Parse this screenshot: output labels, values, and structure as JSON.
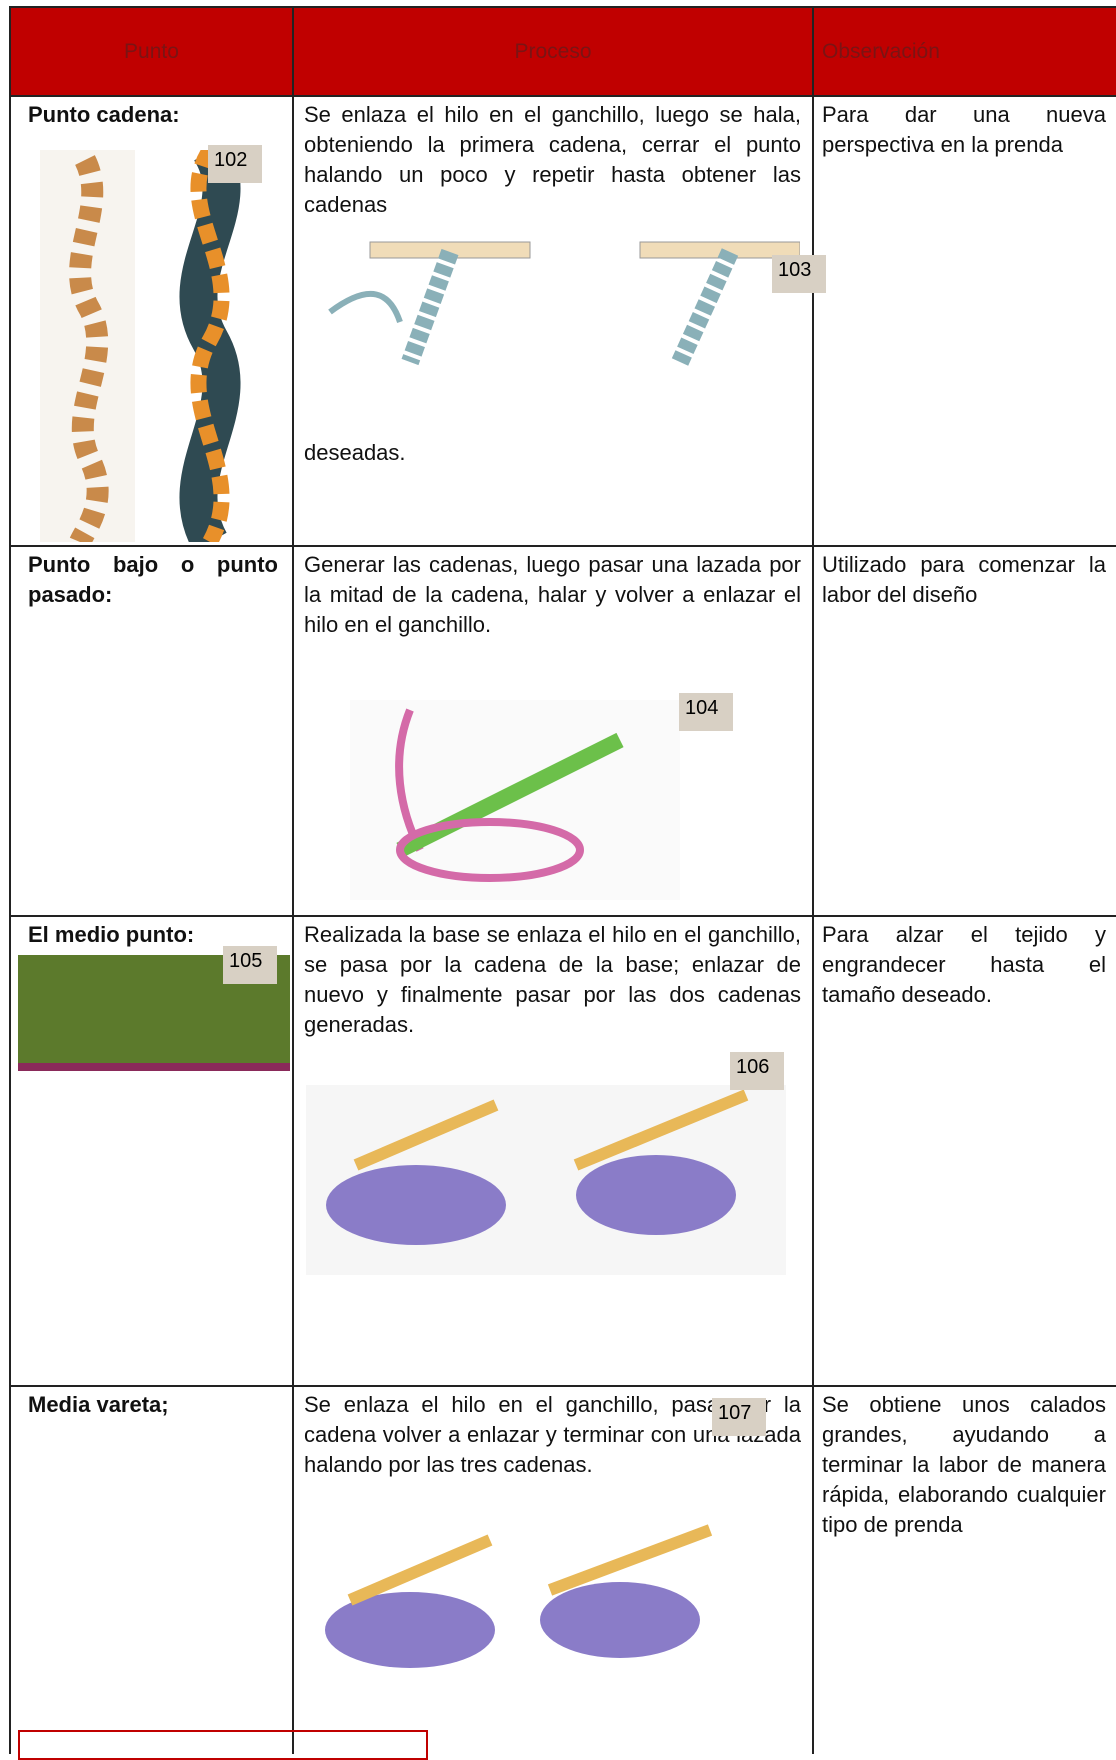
{
  "table": {
    "header": [
      "Punto",
      "Proceso",
      "Observación"
    ],
    "rows": [
      {
        "punto": "Punto cadena:",
        "proceso": "Se enlaza el hilo en el ganchillo, luego se hala, obteniendo la primera cadena, cerrar el punto halando un poco y repetir hasta obtener las cadenas",
        "proceso_end": "deseadas.",
        "observacion": "Para dar una nueva perspectiva en la prenda",
        "labels": [
          "102",
          "103"
        ]
      },
      {
        "punto": "Punto bajo o punto pasado:",
        "proceso": "Generar las cadenas, luego pasar una lazada por la mitad de la cadena, halar y volver a enlazar el hilo en el ganchillo.",
        "observacion": "Utilizado para comenzar la labor del diseño",
        "labels": [
          "104"
        ]
      },
      {
        "punto": "El medio punto:",
        "proceso": "Realizada la base se enlaza el hilo en el ganchillo, se pasa por la cadena de la base; enlazar de nuevo y finalmente pasar por las dos cadenas generadas.",
        "observacion": "Para alzar el tejido y engrandecer hasta el tamaño deseado.",
        "labels": [
          "105",
          "106"
        ]
      },
      {
        "punto": "Media vareta;",
        "proceso": "Se enlaza el hilo en el ganchillo, pasar por la cadena volver a enlazar y terminar con una lazada halando por las tres cadenas.",
        "observacion": "Se obtiene unos calados grandes, ayudando a terminar la labor de manera rápida, elaborando cualquier tipo de prenda",
        "labels": [
          "107"
        ]
      }
    ]
  }
}
